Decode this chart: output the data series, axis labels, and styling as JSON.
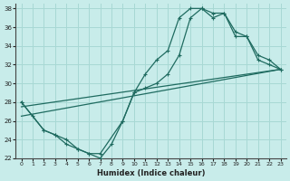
{
  "xlabel": "Humidex (Indice chaleur)",
  "xlim": [
    -0.5,
    23.5
  ],
  "ylim": [
    22,
    38.5
  ],
  "xticks": [
    0,
    1,
    2,
    3,
    4,
    5,
    6,
    7,
    8,
    9,
    10,
    11,
    12,
    13,
    14,
    15,
    16,
    17,
    18,
    19,
    20,
    21,
    22,
    23
  ],
  "yticks": [
    22,
    24,
    26,
    28,
    30,
    32,
    34,
    36,
    38
  ],
  "background_color": "#c8ecea",
  "grid_color": "#a8d8d4",
  "line_color": "#1f6b60",
  "curve1_x": [
    0,
    1,
    2,
    3,
    4,
    5,
    6,
    7,
    8,
    9,
    10,
    11,
    12,
    13,
    14,
    15,
    16,
    17,
    18,
    19,
    20,
    21,
    22,
    23
  ],
  "curve1_y": [
    28,
    26.5,
    25,
    24.5,
    23.5,
    23,
    22.5,
    22,
    23.5,
    26,
    29,
    31,
    32.5,
    33.5,
    37,
    38,
    38,
    37,
    37.5,
    35.5,
    35,
    32.5,
    32,
    31.5
  ],
  "curve2_x": [
    0,
    2,
    3,
    4,
    5,
    6,
    7,
    9,
    10,
    11,
    12,
    13,
    14,
    15,
    16,
    17,
    18,
    19,
    20,
    21,
    22,
    23
  ],
  "curve2_y": [
    28,
    25,
    24.5,
    24,
    23,
    22.5,
    22.5,
    26,
    29,
    29.5,
    30,
    31,
    33,
    37,
    38,
    37.5,
    37.5,
    35,
    35,
    33,
    32.5,
    31.5
  ],
  "line1_x": [
    0,
    23
  ],
  "line1_y": [
    27.5,
    31.5
  ],
  "line2_x": [
    0,
    23
  ],
  "line2_y": [
    26.5,
    31.5
  ]
}
